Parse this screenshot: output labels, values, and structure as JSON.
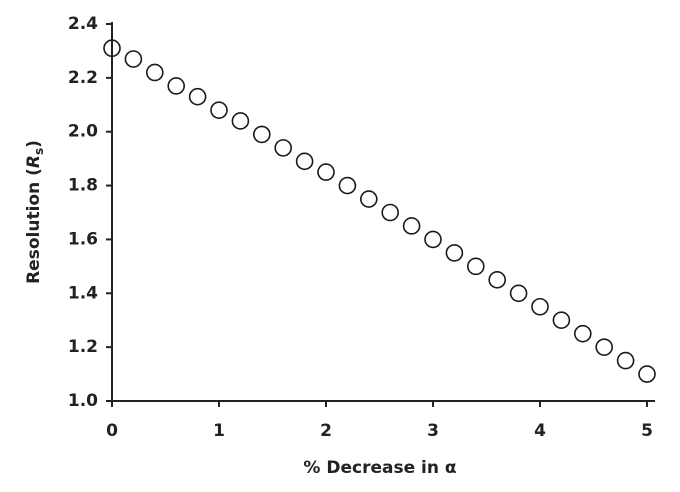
{
  "chart_data": {
    "type": "scatter",
    "x_label": "% Decrease in α",
    "y_label": {
      "prefix": "Resolution (",
      "symbol": "R",
      "subscript": "s",
      "suffix": ")"
    },
    "x": [
      0,
      0.2,
      0.4,
      0.6,
      0.8,
      1,
      1.2,
      1.4,
      1.6,
      1.8,
      2,
      2.2,
      2.4,
      2.6,
      2.8,
      3,
      3.2,
      3.4,
      3.6,
      3.8,
      4,
      4.2,
      4.4,
      4.6,
      4.8,
      5
    ],
    "values": [
      2.31,
      2.27,
      2.22,
      2.17,
      2.13,
      2.08,
      2.04,
      1.99,
      1.94,
      1.89,
      1.85,
      1.8,
      1.75,
      1.7,
      1.65,
      1.6,
      1.55,
      1.5,
      1.45,
      1.4,
      1.35,
      1.3,
      1.25,
      1.2,
      1.15,
      1.1
    ],
    "color": "#1a1a1a",
    "xlim": [
      0,
      5
    ],
    "xticks": [
      0,
      1,
      2,
      3,
      4,
      5
    ],
    "ylim": [
      1.0,
      2.4
    ],
    "yticks": [
      {
        "value": 1.0,
        "label": "1.0"
      },
      {
        "value": 1.2,
        "label": "1.2"
      },
      {
        "value": 1.4,
        "label": "1.4"
      },
      {
        "value": 1.6,
        "label": "1.6"
      },
      {
        "value": 1.8,
        "label": "1.8"
      },
      {
        "value": 2.0,
        "label": "2.0"
      },
      {
        "value": 2.2,
        "label": "2.2"
      },
      {
        "value": 2.4,
        "label": "2.4"
      }
    ],
    "grid": false
  }
}
